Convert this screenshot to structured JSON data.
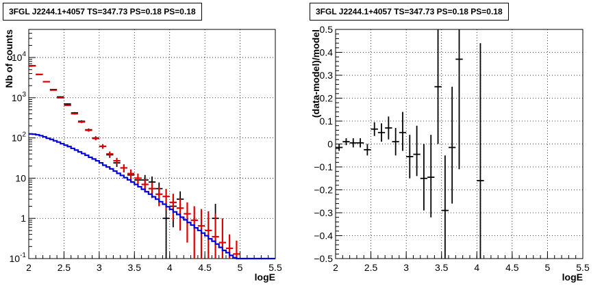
{
  "chart_data": [
    {
      "type": "scatter",
      "title": "3FGL J2244.1+4057 TS=347.73 PS=0.18 PS=0.18",
      "xlabel": "logE",
      "ylabel": "Nb of counts",
      "xlim": [
        2,
        5.5
      ],
      "ylim": [
        0.1,
        50000
      ],
      "yscale": "log",
      "grid": true,
      "x_ticks": [
        "2",
        "2.5",
        "3",
        "3.5",
        "4",
        "4.5",
        "5",
        "5.5"
      ],
      "y_ticks": [
        "10^-1",
        "1",
        "10",
        "10^2",
        "10^3",
        "10^4"
      ],
      "series": [
        {
          "kind": "data-points",
          "color": "#000000",
          "points": [
            {
              "x": 2.05,
              "y": 6300,
              "ylo": 6220,
              "yhi": 6380
            },
            {
              "x": 2.15,
              "y": 3800,
              "ylo": 3740,
              "yhi": 3860
            },
            {
              "x": 2.25,
              "y": 2500,
              "ylo": 2450,
              "yhi": 2550
            },
            {
              "x": 2.35,
              "y": 1600,
              "ylo": 1560,
              "yhi": 1640
            },
            {
              "x": 2.45,
              "y": 1050,
              "ylo": 1020,
              "yhi": 1080
            },
            {
              "x": 2.55,
              "y": 700,
              "ylo": 675,
              "yhi": 725
            },
            {
              "x": 2.65,
              "y": 420,
              "ylo": 400,
              "yhi": 440
            },
            {
              "x": 2.75,
              "y": 260,
              "ylo": 245,
              "yhi": 275
            },
            {
              "x": 2.85,
              "y": 160,
              "ylo": 148,
              "yhi": 172
            },
            {
              "x": 2.95,
              "y": 100,
              "ylo": 90,
              "yhi": 110
            },
            {
              "x": 3.05,
              "y": 62,
              "ylo": 54,
              "yhi": 70
            },
            {
              "x": 3.15,
              "y": 38,
              "ylo": 32,
              "yhi": 44
            },
            {
              "x": 3.25,
              "y": 24,
              "ylo": 19,
              "yhi": 29
            },
            {
              "x": 3.35,
              "y": 18,
              "ylo": 14,
              "yhi": 22
            },
            {
              "x": 3.45,
              "y": 12,
              "ylo": 8.5,
              "yhi": 15.5
            },
            {
              "x": 3.55,
              "y": 9,
              "ylo": 6,
              "yhi": 12
            },
            {
              "x": 3.65,
              "y": 9,
              "ylo": 6,
              "yhi": 12
            },
            {
              "x": 3.75,
              "y": 8,
              "ylo": 5,
              "yhi": 11
            },
            {
              "x": 3.85,
              "y": 5.5,
              "ylo": 3.2,
              "yhi": 7.8
            },
            {
              "x": 3.95,
              "y": 1,
              "ylo": 0.1,
              "yhi": 2.3
            },
            {
              "x": 4.05,
              "y": 2,
              "ylo": 0.6,
              "yhi": 3.4
            },
            {
              "x": 4.15,
              "y": 3,
              "ylo": 1.3,
              "yhi": 4.7
            },
            {
              "x": 4.65,
              "y": 1,
              "ylo": 0.1,
              "yhi": 2.3
            }
          ]
        },
        {
          "kind": "model-points",
          "color": "#dd0000",
          "points": [
            {
              "x": 2.05,
              "y": 6200,
              "ylo": 6120,
              "yhi": 6280
            },
            {
              "x": 2.15,
              "y": 3800,
              "ylo": 3740,
              "yhi": 3860
            },
            {
              "x": 2.25,
              "y": 2500,
              "ylo": 2450,
              "yhi": 2550
            },
            {
              "x": 2.35,
              "y": 1550,
              "ylo": 1510,
              "yhi": 1590
            },
            {
              "x": 2.45,
              "y": 1000,
              "ylo": 970,
              "yhi": 1030
            },
            {
              "x": 2.55,
              "y": 650,
              "ylo": 625,
              "yhi": 675
            },
            {
              "x": 2.65,
              "y": 400,
              "ylo": 380,
              "yhi": 420
            },
            {
              "x": 2.75,
              "y": 250,
              "ylo": 235,
              "yhi": 265
            },
            {
              "x": 2.85,
              "y": 155,
              "ylo": 143,
              "yhi": 167
            },
            {
              "x": 2.95,
              "y": 97,
              "ylo": 88,
              "yhi": 106
            },
            {
              "x": 3.05,
              "y": 62,
              "ylo": 55,
              "yhi": 69
            },
            {
              "x": 3.15,
              "y": 40,
              "ylo": 34,
              "yhi": 46
            },
            {
              "x": 3.25,
              "y": 27,
              "ylo": 22,
              "yhi": 32
            },
            {
              "x": 3.35,
              "y": 18,
              "ylo": 14,
              "yhi": 22
            },
            {
              "x": 3.45,
              "y": 13,
              "ylo": 9.5,
              "yhi": 16.5
            },
            {
              "x": 3.55,
              "y": 10,
              "ylo": 7,
              "yhi": 13
            },
            {
              "x": 3.65,
              "y": 7,
              "ylo": 4.5,
              "yhi": 9.5
            },
            {
              "x": 3.75,
              "y": 5.5,
              "ylo": 3.2,
              "yhi": 7.8
            },
            {
              "x": 3.85,
              "y": 4,
              "ylo": 2,
              "yhi": 6
            },
            {
              "x": 3.95,
              "y": 3.5,
              "ylo": 1.6,
              "yhi": 5.4
            },
            {
              "x": 4.05,
              "y": 2.5,
              "ylo": 0.9,
              "yhi": 4.1
            },
            {
              "x": 4.15,
              "y": 1.8,
              "ylo": 0.5,
              "yhi": 3.1
            },
            {
              "x": 4.25,
              "y": 1.3,
              "ylo": 0.25,
              "yhi": 2.5
            },
            {
              "x": 4.35,
              "y": 0.9,
              "ylo": 0.1,
              "yhi": 2.0
            },
            {
              "x": 4.45,
              "y": 0.65,
              "ylo": 0.1,
              "yhi": 1.7
            },
            {
              "x": 4.55,
              "y": 0.5,
              "ylo": 0.1,
              "yhi": 1.5
            },
            {
              "x": 4.65,
              "y": 0.35,
              "ylo": 0.1,
              "yhi": 1.3
            },
            {
              "x": 4.75,
              "y": 0.25,
              "ylo": 0.1,
              "yhi": 1.0
            },
            {
              "x": 4.85,
              "y": 0.18,
              "ylo": 0.1,
              "yhi": 0.4
            },
            {
              "x": 4.95,
              "y": 0.13,
              "ylo": 0.1,
              "yhi": 0.28
            }
          ]
        },
        {
          "kind": "model-histogram",
          "color": "#0000dd",
          "bin_width": 0.05,
          "bin_start": 2.0,
          "values": [
            126,
            124,
            120,
            114,
            107,
            98,
            92,
            85,
            79,
            72,
            66,
            61,
            55,
            50,
            45,
            41,
            37,
            33,
            30,
            27,
            24,
            21,
            19,
            17,
            15,
            13.2,
            11.7,
            10.3,
            9.1,
            8.0,
            7.0,
            6.1,
            5.3,
            4.6,
            4.0,
            3.45,
            3.0,
            2.6,
            2.25,
            1.95,
            1.68,
            1.45,
            1.25,
            1.07,
            0.92,
            0.79,
            0.68,
            0.58,
            0.5,
            0.43,
            0.37,
            0.31,
            0.27,
            0.23,
            0.19,
            0.16,
            0.14,
            0.12,
            0.105,
            0.1,
            0.1,
            0.1,
            0.1,
            0.1,
            0.1,
            0.1,
            0.1,
            0.1,
            0.1,
            0.1
          ]
        }
      ]
    },
    {
      "type": "scatter",
      "title": "3FGL J2244.1+4057 TS=347.73 PS=0.18 PS=0.18",
      "xlabel": "logE",
      "ylabel": "(data-model)/model",
      "xlim": [
        2,
        5.5
      ],
      "ylim": [
        -0.5,
        0.5
      ],
      "grid": true,
      "x_ticks": [
        "2",
        "2.5",
        "3",
        "3.5",
        "4",
        "4.5",
        "5",
        "5.5"
      ],
      "y_ticks": [
        "−0.5",
        "−0.4",
        "−0.3",
        "−0.2",
        "−0.1",
        "0",
        "0.1",
        "0.2",
        "0.3",
        "0.4",
        "0.5"
      ],
      "series": [
        {
          "kind": "residuals",
          "color": "#000000",
          "points": [
            {
              "x": 2.05,
              "y": -0.015,
              "ylo": -0.03,
              "yhi": 0.0
            },
            {
              "x": 2.15,
              "y": 0.01,
              "ylo": -0.005,
              "yhi": 0.025
            },
            {
              "x": 2.25,
              "y": 0.005,
              "ylo": -0.015,
              "yhi": 0.025
            },
            {
              "x": 2.35,
              "y": 0.005,
              "ylo": -0.015,
              "yhi": 0.025
            },
            {
              "x": 2.45,
              "y": -0.025,
              "ylo": -0.05,
              "yhi": 0.0
            },
            {
              "x": 2.55,
              "y": 0.065,
              "ylo": 0.035,
              "yhi": 0.095
            },
            {
              "x": 2.65,
              "y": 0.05,
              "ylo": 0.01,
              "yhi": 0.09
            },
            {
              "x": 2.75,
              "y": 0.07,
              "ylo": 0.02,
              "yhi": 0.12
            },
            {
              "x": 2.85,
              "y": 0.01,
              "ylo": -0.05,
              "yhi": 0.07
            },
            {
              "x": 2.95,
              "y": 0.05,
              "ylo": -0.03,
              "yhi": 0.14
            },
            {
              "x": 3.05,
              "y": -0.055,
              "ylo": -0.15,
              "yhi": 0.04
            },
            {
              "x": 3.15,
              "y": -0.045,
              "ylo": -0.14,
              "yhi": 0.08
            },
            {
              "x": 3.25,
              "y": -0.15,
              "ylo": -0.29,
              "yhi": 0.0
            },
            {
              "x": 3.35,
              "y": -0.145,
              "ylo": -0.32,
              "yhi": 0.04
            },
            {
              "x": 3.45,
              "y": 0.25,
              "ylo": 0.0,
              "yhi": 0.5
            },
            {
              "x": 3.55,
              "y": -0.29,
              "ylo": -0.5,
              "yhi": -0.05
            },
            {
              "x": 3.65,
              "y": -0.015,
              "ylo": -0.26,
              "yhi": 0.25
            },
            {
              "x": 3.75,
              "y": 0.37,
              "ylo": -0.11,
              "yhi": 0.5
            },
            {
              "x": 4.05,
              "y": -0.16,
              "ylo": -0.5,
              "yhi": 0.44
            }
          ]
        }
      ]
    }
  ]
}
